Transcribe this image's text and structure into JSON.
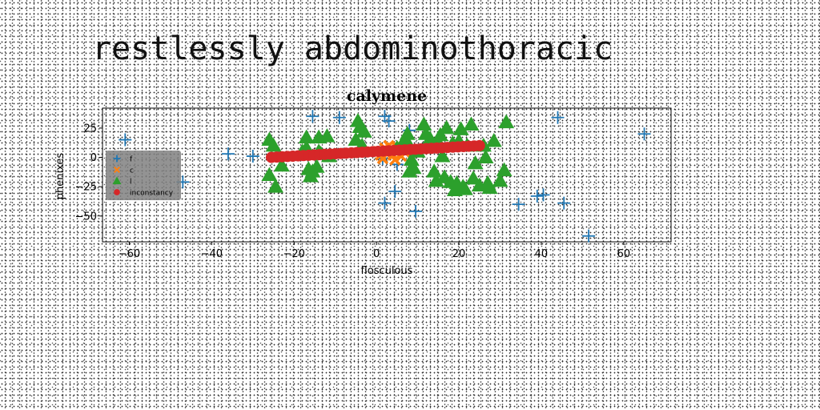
{
  "heading": "restlessly abdominothoracic",
  "chart_data": {
    "type": "scatter",
    "title": "calymene",
    "xlabel": "flosculous",
    "ylabel": "phenixes",
    "xlim": [
      -66.5,
      71.5
    ],
    "ylim": [
      -72,
      42
    ],
    "xticks": [
      -60,
      -40,
      -20,
      0,
      20,
      40,
      60
    ],
    "yticks": [
      25,
      0,
      -25,
      -50
    ],
    "grid": false,
    "legend": {
      "position": "center-left",
      "background": "#808080"
    },
    "series": [
      {
        "name": "f",
        "marker": "plus",
        "color": "#1f77b4",
        "points": [
          [
            -61,
            15
          ],
          [
            -47,
            -21
          ],
          [
            -36,
            3
          ],
          [
            -30,
            1
          ],
          [
            -15.5,
            35
          ],
          [
            -9,
            34
          ],
          [
            2,
            35
          ],
          [
            3,
            31
          ],
          [
            8,
            23
          ],
          [
            1.5,
            -1
          ],
          [
            5,
            -6
          ],
          [
            4.5,
            -29
          ],
          [
            2,
            -39
          ],
          [
            9.5,
            -46
          ],
          [
            34.5,
            -40
          ],
          [
            39,
            -33
          ],
          [
            40.5,
            -32
          ],
          [
            45.5,
            -39
          ],
          [
            44,
            34
          ],
          [
            51.5,
            -67
          ],
          [
            65,
            20
          ]
        ]
      },
      {
        "name": "c",
        "marker": "x",
        "color": "#ff7f0e",
        "points": [
          [
            0.5,
            5
          ],
          [
            1.5,
            -1
          ],
          [
            2.5,
            3
          ],
          [
            3.5,
            8
          ],
          [
            4.5,
            -2
          ],
          [
            5.5,
            6
          ],
          [
            6,
            1
          ],
          [
            2,
            8
          ],
          [
            4,
            2
          ],
          [
            7,
            4
          ],
          [
            1,
            2
          ],
          [
            3,
            10
          ],
          [
            5,
            9
          ],
          [
            6.5,
            8
          ]
        ]
      },
      {
        "name": "l",
        "marker": "triangle",
        "color": "#2ca02c",
        "points": [
          [
            -26,
            15
          ],
          [
            -25,
            10
          ],
          [
            -26,
            -15
          ],
          [
            -24.5,
            -25
          ],
          [
            -23,
            -7
          ],
          [
            -18,
            5
          ],
          [
            -17,
            8
          ],
          [
            -16.5,
            -10
          ],
          [
            -16,
            -16
          ],
          [
            -15.5,
            -12
          ],
          [
            -14,
            5
          ],
          [
            -14.5,
            -8
          ],
          [
            -13.5,
            3
          ],
          [
            -17,
            17
          ],
          [
            -14,
            17
          ],
          [
            -12,
            18
          ],
          [
            -11.5,
            1
          ],
          [
            -4.5,
            31
          ],
          [
            -4,
            26
          ],
          [
            -3.5,
            10
          ],
          [
            -3,
            22
          ],
          [
            -5,
            15
          ],
          [
            5,
            8
          ],
          [
            6.5,
            10
          ],
          [
            7,
            16
          ],
          [
            7.5,
            20
          ],
          [
            8,
            -12
          ],
          [
            8.5,
            -2
          ],
          [
            9,
            -9
          ],
          [
            10,
            5
          ],
          [
            11.5,
            28
          ],
          [
            12,
            20
          ],
          [
            13,
            16
          ],
          [
            14,
            -12
          ],
          [
            14.5,
            -20
          ],
          [
            15,
            13
          ],
          [
            15.5,
            19
          ],
          [
            16,
            1
          ],
          [
            16.5,
            -17
          ],
          [
            17,
            25
          ],
          [
            18,
            -21
          ],
          [
            18.5,
            12
          ],
          [
            19,
            -28
          ],
          [
            19.5,
            -22
          ],
          [
            20,
            14
          ],
          [
            20.5,
            24
          ],
          [
            21,
            -25
          ],
          [
            21.5,
            -27
          ],
          [
            22,
            10
          ],
          [
            23,
            28
          ],
          [
            23.5,
            -18
          ],
          [
            24,
            -5
          ],
          [
            25,
            -24
          ],
          [
            26,
            10
          ],
          [
            26.5,
            0
          ],
          [
            27,
            -22
          ],
          [
            27.5,
            -26
          ],
          [
            28.5,
            14
          ],
          [
            30,
            -20
          ],
          [
            31,
            -11
          ],
          [
            31.5,
            30
          ]
        ]
      },
      {
        "name": "inconstancy",
        "marker": "circle",
        "color": "#d62728",
        "line": {
          "x0": -25.5,
          "y0": 0,
          "x1": 25,
          "y1": 10,
          "n": 40
        }
      }
    ]
  }
}
